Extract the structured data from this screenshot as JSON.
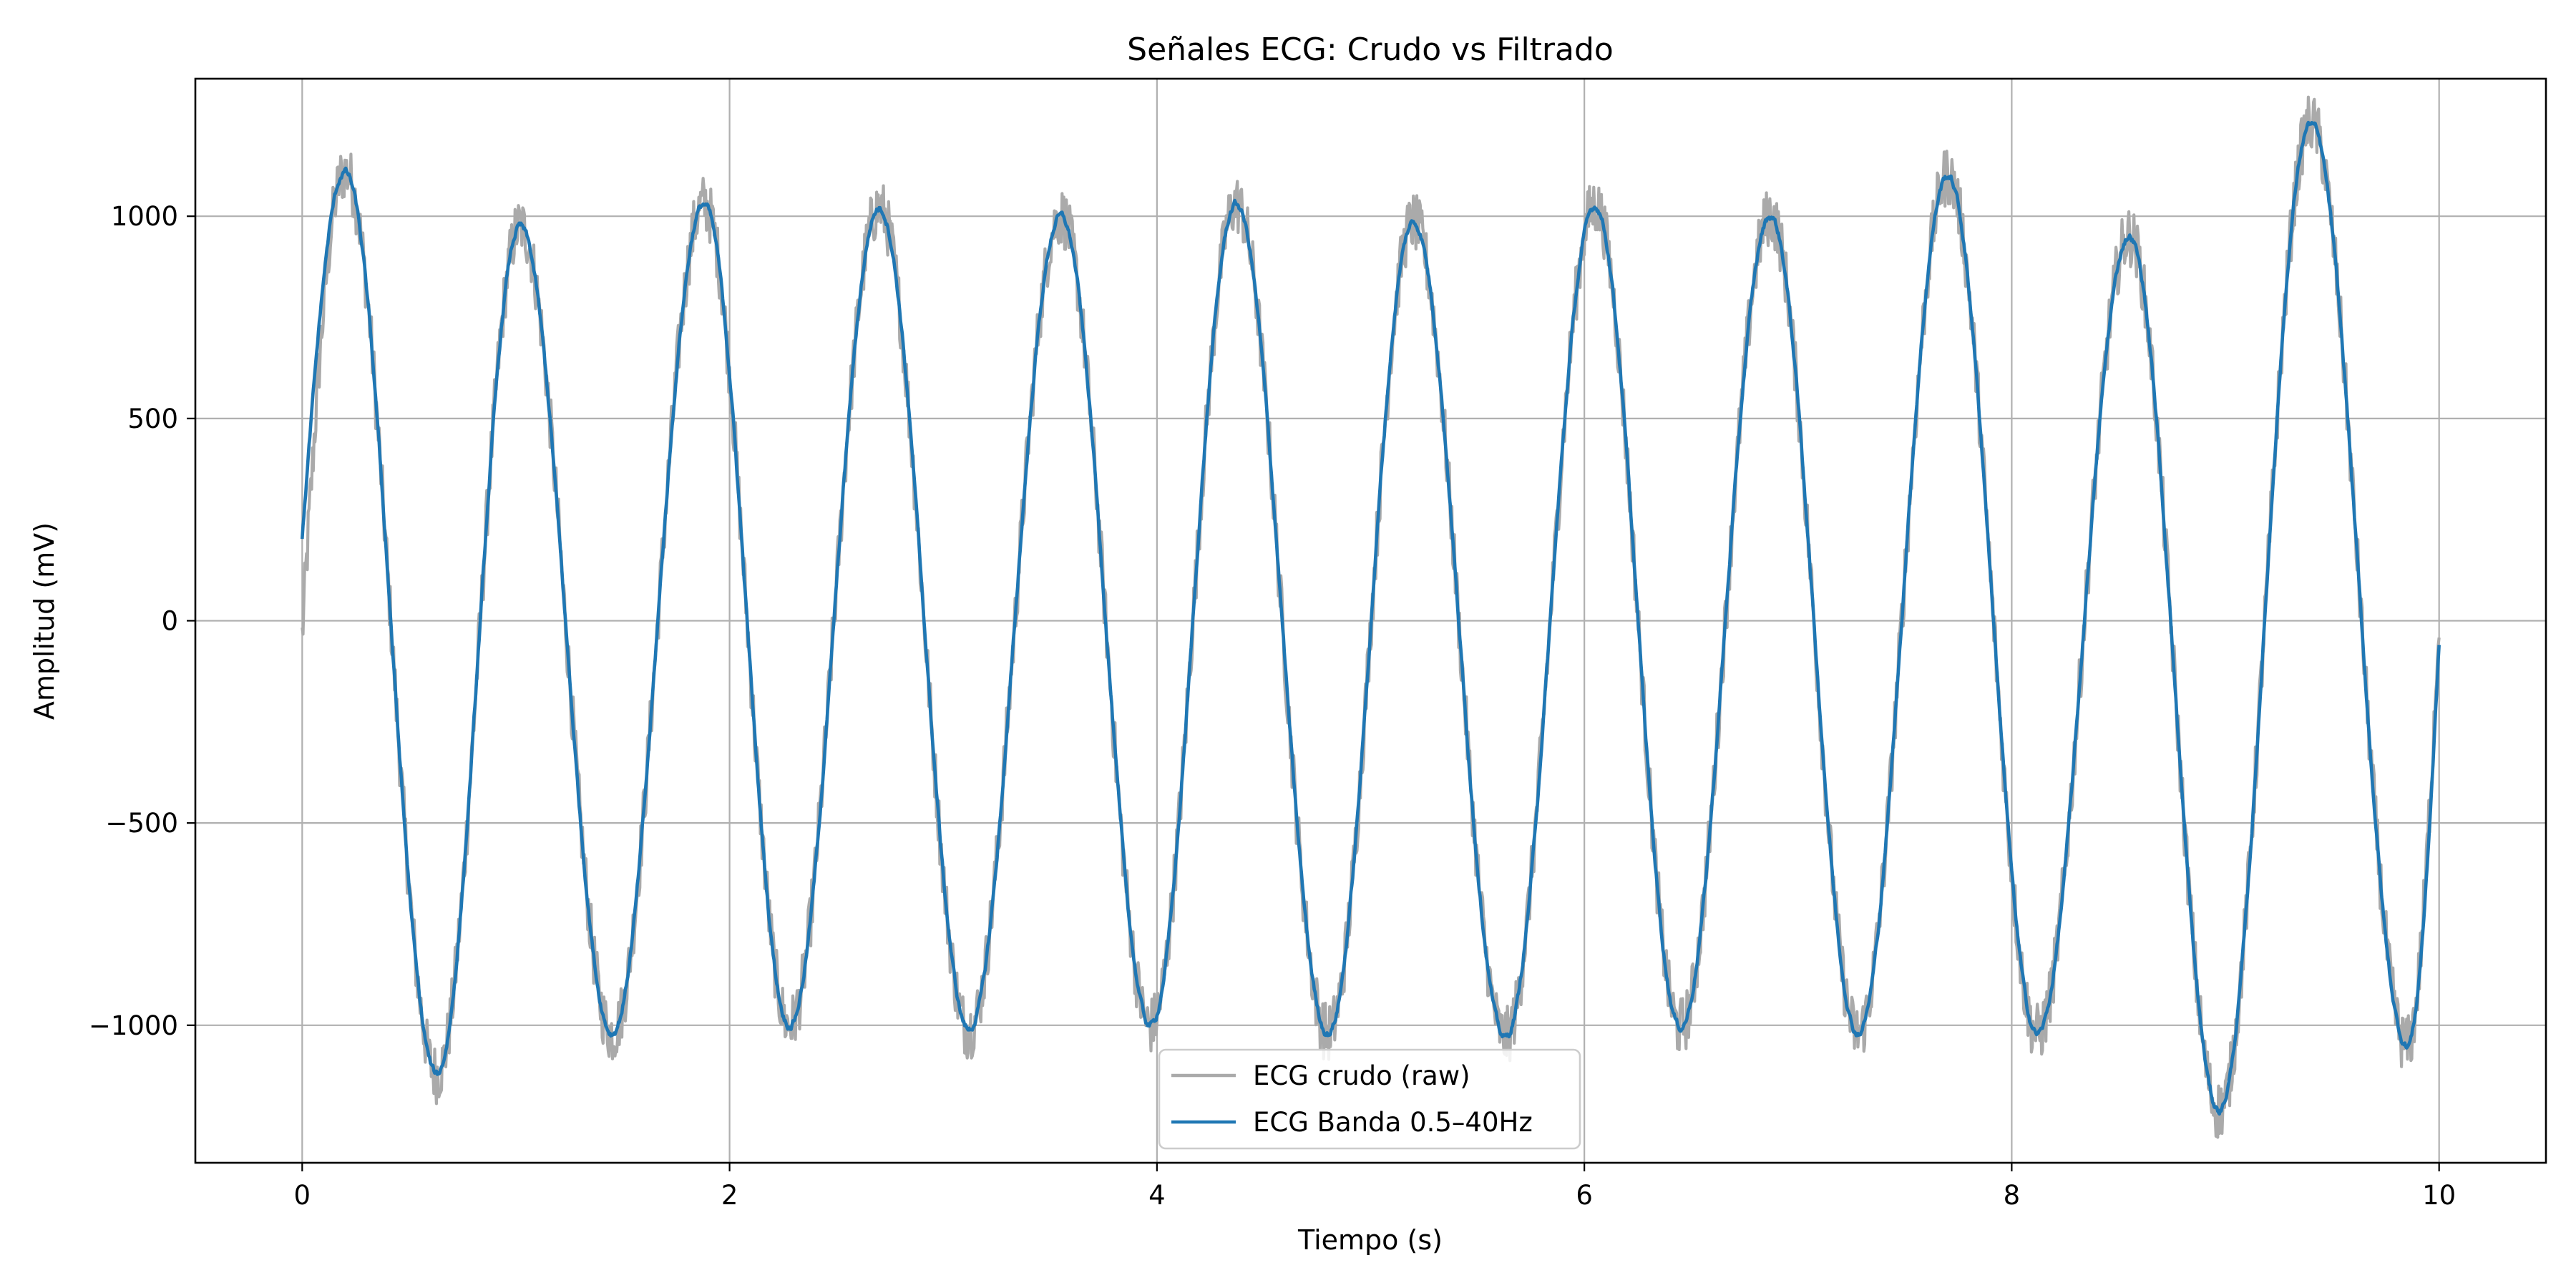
{
  "chart_data": {
    "type": "line",
    "title": "Señales ECG: Crudo vs Filtrado",
    "xlabel": "Tiempo (s)",
    "ylabel": "Amplitud (mV)",
    "xlim": [
      -0.5,
      10.5
    ],
    "ylim": [
      -1340,
      1340
    ],
    "xticks": [
      0,
      2,
      4,
      6,
      8,
      10
    ],
    "xtick_labels": [
      "0",
      "2",
      "4",
      "6",
      "8",
      "10"
    ],
    "yticks": [
      -1000,
      -500,
      0,
      500,
      1000
    ],
    "ytick_labels": [
      "−1000",
      "−500",
      "0",
      "500",
      "1000"
    ],
    "grid": true,
    "legend_position": "lower center",
    "signal_model": {
      "peaks_s": [
        0.2,
        1.02,
        1.88,
        2.7,
        3.55,
        4.37,
        5.2,
        6.05,
        6.87,
        7.7,
        8.55,
        9.4
      ],
      "troughs_s": [
        0.63,
        1.45,
        2.28,
        3.12,
        3.97,
        4.8,
        5.63,
        6.45,
        7.28,
        8.12,
        8.97,
        9.85
      ],
      "peak_mv": [
        1110,
        975,
        1030,
        1020,
        1000,
        1030,
        985,
        1025,
        1000,
        1100,
        950,
        1230
      ],
      "trough_mv": [
        -1120,
        -1020,
        -1000,
        -1010,
        -1000,
        -1020,
        -1030,
        -1005,
        -1020,
        -1020,
        -1210,
        -1050
      ],
      "start_mv": 200,
      "end_mv": -60
    },
    "series": [
      {
        "name": "ECG crudo (raw)",
        "color": "#aaaaaa",
        "noise_mv": 75,
        "start_mv": -40,
        "end_mv": 20
      },
      {
        "name": "ECG Banda 0.5–40Hz",
        "color": "#1f77b4",
        "noise_mv": 22
      }
    ]
  }
}
